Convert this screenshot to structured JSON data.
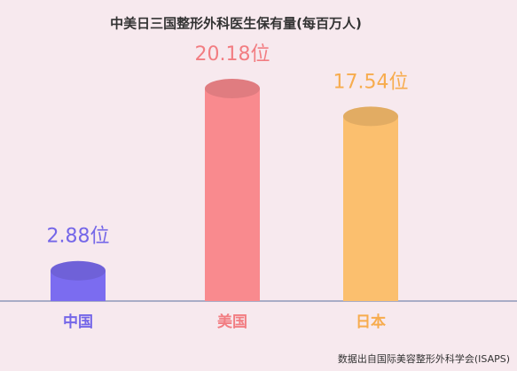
{
  "chart_data": {
    "type": "bar",
    "title": "中美日三国整形外科医生保有量(每百万人)",
    "categories": [
      "中国",
      "美国",
      "日本"
    ],
    "values": [
      2.88,
      20.18,
      17.54
    ],
    "value_labels": [
      "2.88位",
      "20.18位",
      "17.54位"
    ],
    "colors": [
      "#7b6cf0",
      "#f98a8e",
      "#fbbf6e"
    ],
    "label_colors": [
      "#7466e8",
      "#f27d82",
      "#f7ac4e"
    ],
    "source": "数据出自国际美容整形外科学会(ISAPS)"
  }
}
